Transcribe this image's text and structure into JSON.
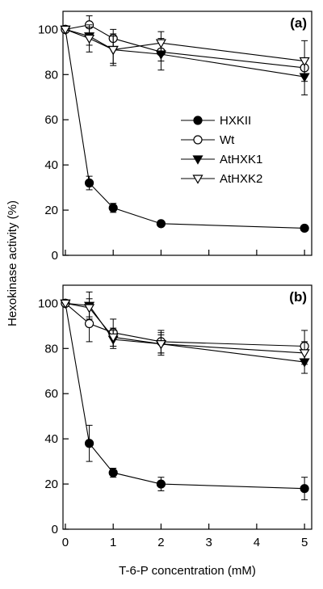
{
  "chart_data": [
    {
      "type": "line",
      "panel_label": "(a)",
      "x": [
        0,
        0.5,
        1,
        2,
        5
      ],
      "xlim": [
        0,
        5
      ],
      "ylim": [
        0,
        100
      ],
      "yticks": [
        0,
        20,
        40,
        60,
        80,
        100
      ],
      "xticks": [],
      "legend_position": "center-right",
      "series": [
        {
          "name": "HXKII",
          "marker": "filled-circle",
          "values": [
            100,
            32,
            21,
            14,
            12
          ],
          "errors": [
            0,
            3,
            2,
            1,
            1
          ]
        },
        {
          "name": "Wt",
          "marker": "open-circle",
          "values": [
            100,
            102,
            96,
            90,
            83
          ],
          "errors": [
            0,
            4,
            4,
            4,
            4
          ]
        },
        {
          "name": "AtHXK1",
          "marker": "filled-triangle-down",
          "values": [
            100,
            97,
            91,
            89,
            79
          ],
          "errors": [
            0,
            4,
            7,
            7,
            8
          ]
        },
        {
          "name": "AtHXK2",
          "marker": "open-triangle-down",
          "values": [
            100,
            96,
            91,
            94,
            86
          ],
          "errors": [
            0,
            6,
            6,
            5,
            9
          ]
        }
      ]
    },
    {
      "type": "line",
      "panel_label": "(b)",
      "x": [
        0,
        0.5,
        1,
        2,
        5
      ],
      "xlim": [
        0,
        5
      ],
      "ylim": [
        0,
        100
      ],
      "yticks": [
        0,
        20,
        40,
        60,
        80,
        100
      ],
      "xticks": [
        0,
        1,
        2,
        3,
        4,
        5
      ],
      "xlabel": "T-6-P concentration (mM)",
      "series": [
        {
          "name": "HXKII",
          "marker": "filled-circle",
          "values": [
            100,
            38,
            25,
            20,
            18
          ],
          "errors": [
            0,
            8,
            2,
            3,
            5
          ]
        },
        {
          "name": "Wt",
          "marker": "open-circle",
          "values": [
            100,
            91,
            87,
            83,
            81
          ],
          "errors": [
            0,
            8,
            6,
            5,
            7
          ]
        },
        {
          "name": "AtHXK1",
          "marker": "filled-triangle-down",
          "values": [
            100,
            99,
            84,
            82,
            74
          ],
          "errors": [
            0,
            6,
            4,
            5,
            5
          ]
        },
        {
          "name": "AtHXK2",
          "marker": "open-triangle-down",
          "values": [
            100,
            98,
            85,
            82,
            78
          ],
          "errors": [
            0,
            4,
            4,
            4,
            5
          ]
        }
      ]
    }
  ],
  "shared_ylabel": "Hexokinase activity (%)"
}
